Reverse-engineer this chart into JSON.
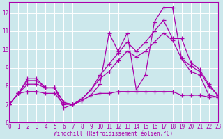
{
  "xlabel": "Windchill (Refroidissement éolien,°C)",
  "background_color": "#cce8ec",
  "line_color": "#aa00aa",
  "grid_color": "#ffffff",
  "xmin": 0,
  "xmax": 23,
  "ymin": 6,
  "ymax": 12.6,
  "series": [
    [
      7.0,
      7.6,
      8.4,
      8.4,
      7.9,
      7.9,
      6.8,
      7.0,
      7.2,
      7.5,
      8.1,
      10.9,
      9.9,
      10.9,
      7.8,
      8.6,
      11.5,
      12.3,
      12.3,
      9.5,
      8.8,
      8.6,
      7.5,
      7.4
    ],
    [
      7.0,
      7.6,
      8.3,
      8.3,
      7.9,
      7.9,
      7.1,
      7.0,
      7.3,
      7.8,
      8.6,
      9.2,
      9.8,
      10.4,
      9.9,
      10.4,
      11.0,
      11.6,
      10.6,
      10.6,
      9.3,
      8.9,
      8.1,
      7.5
    ],
    [
      7.0,
      7.6,
      8.1,
      8.1,
      7.9,
      7.9,
      7.1,
      7.0,
      7.3,
      7.8,
      8.4,
      8.8,
      9.4,
      9.9,
      9.6,
      9.9,
      10.4,
      10.9,
      10.5,
      9.5,
      9.1,
      8.8,
      8.0,
      7.5
    ],
    [
      7.0,
      7.6,
      7.7,
      7.7,
      7.6,
      7.6,
      7.0,
      7.0,
      7.2,
      7.5,
      7.6,
      7.6,
      7.7,
      7.7,
      7.7,
      7.7,
      7.7,
      7.7,
      7.7,
      7.5,
      7.5,
      7.5,
      7.4,
      7.4
    ]
  ],
  "yticks": [
    6,
    7,
    8,
    9,
    10,
    11,
    12
  ],
  "xticks": [
    0,
    1,
    2,
    3,
    4,
    5,
    6,
    7,
    8,
    9,
    10,
    11,
    12,
    13,
    14,
    15,
    16,
    17,
    18,
    19,
    20,
    21,
    22,
    23
  ],
  "marker": "+",
  "markersize": 4,
  "linewidth": 0.9,
  "tick_fontsize": 5.5,
  "xlabel_fontsize": 5.5,
  "spine_linewidth": 0.8
}
